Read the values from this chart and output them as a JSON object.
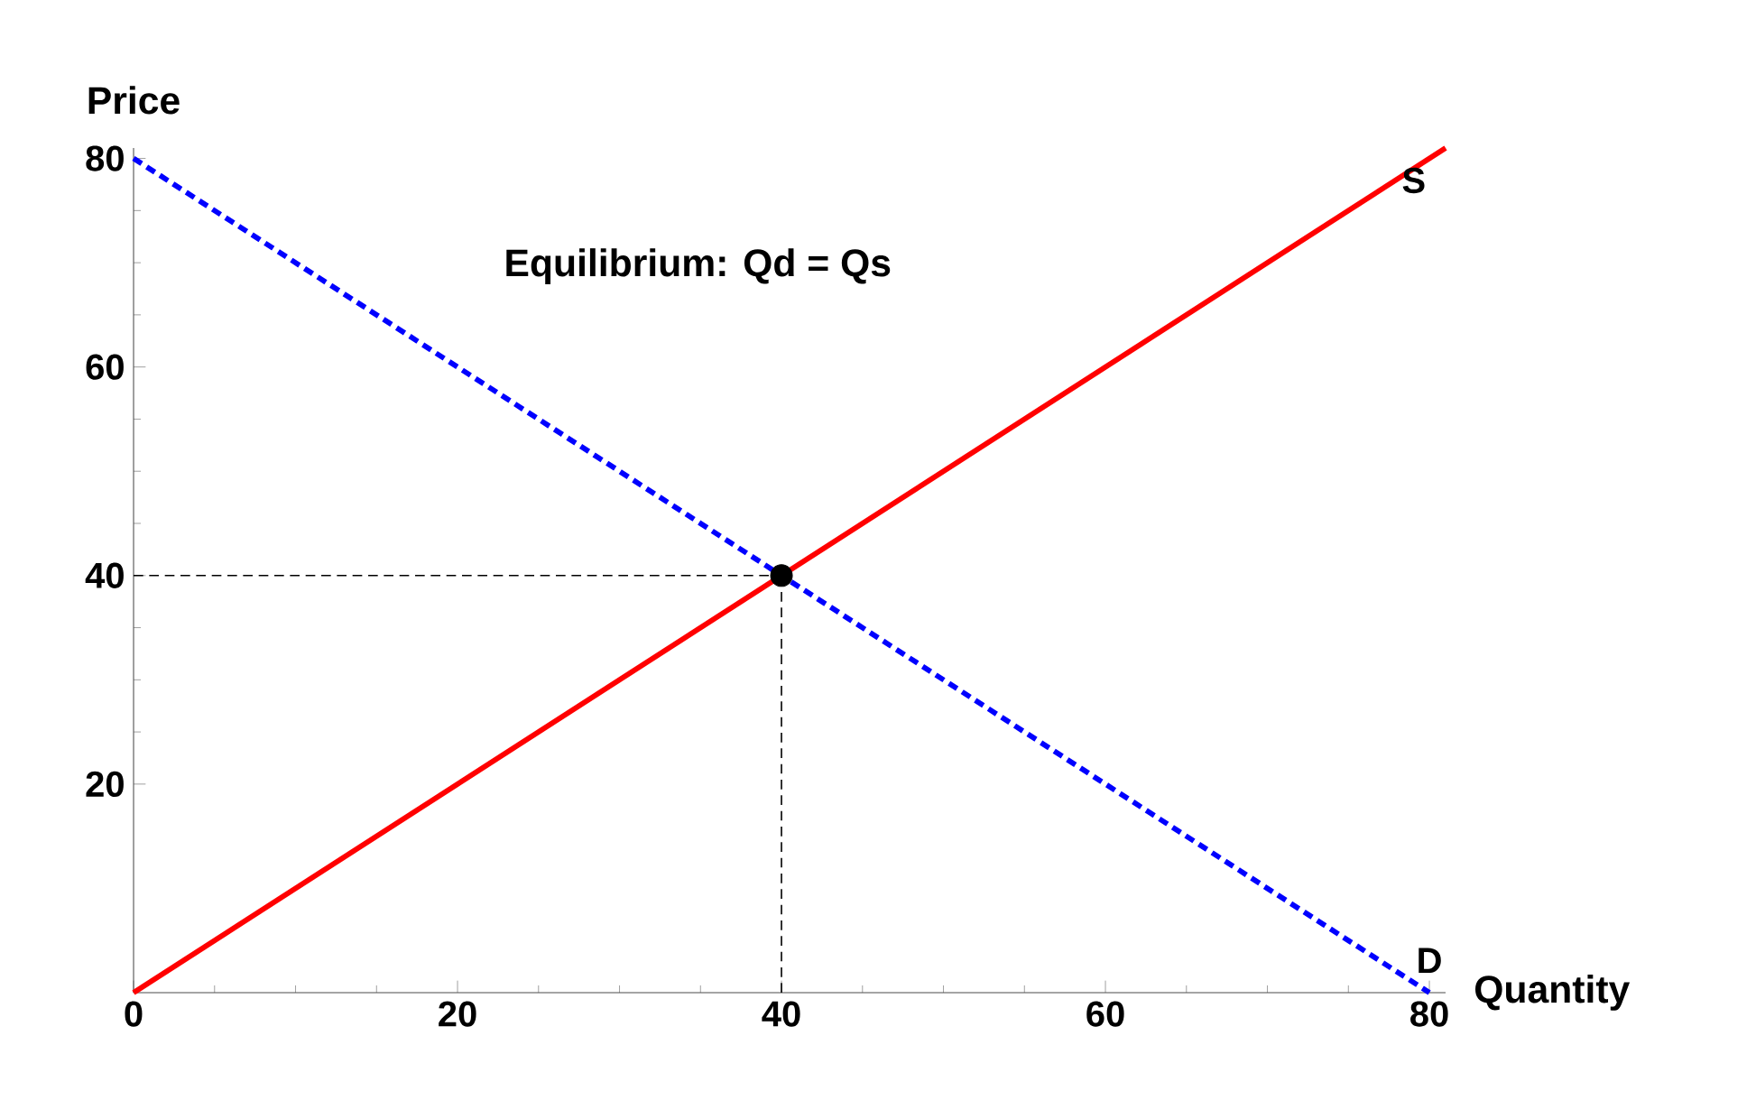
{
  "chart_data": {
    "type": "line",
    "xlabel": "Quantity",
    "ylabel": "Price",
    "annotations": [
      "Equilibrium: Qd = Qs"
    ],
    "xlim": [
      0,
      81
    ],
    "ylim": [
      0,
      81
    ],
    "xticks": [
      0,
      20,
      40,
      60,
      80
    ],
    "yticks": [
      20,
      40,
      60,
      80
    ],
    "series": [
      {
        "name": "S",
        "color": "#ff0000",
        "line_style": "solid",
        "x": [
          0,
          81
        ],
        "values": [
          0,
          81
        ]
      },
      {
        "name": "D",
        "color": "#0000ff",
        "line_style": "dashed",
        "x": [
          0,
          80
        ],
        "values": [
          80,
          0
        ]
      },
      {
        "type": "line",
        "color": "#000000",
        "line_style": "dashed",
        "x": [
          0,
          40
        ],
        "values": [
          40,
          40
        ]
      },
      {
        "type": "line",
        "color": "#000000",
        "line_style": "dashed",
        "x": [
          40,
          40
        ],
        "values": [
          0,
          40
        ]
      },
      {
        "type": "scatter",
        "color": "#000000",
        "marker": "circle",
        "x": [
          40
        ],
        "values": [
          40
        ]
      }
    ]
  }
}
